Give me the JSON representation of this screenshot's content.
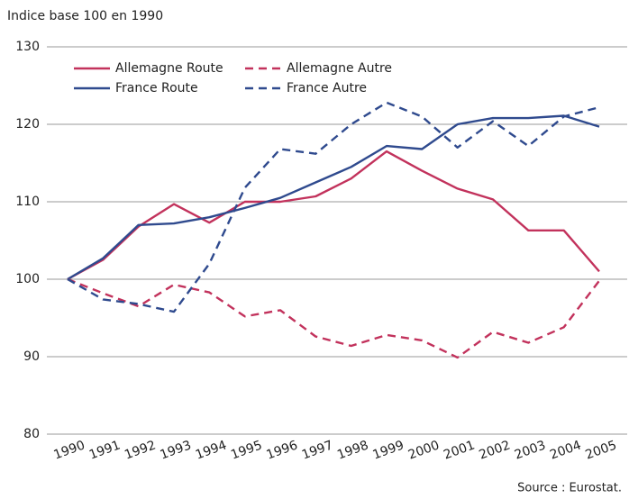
{
  "chart_data": {
    "type": "line",
    "title": "Indice base 100 en 1990",
    "source": "Source : Eurostat.",
    "categories": [
      "1990",
      "1991",
      "1992",
      "1993",
      "1994",
      "1995",
      "1996",
      "1997",
      "1998",
      "1999",
      "2000",
      "2001",
      "2002",
      "2003",
      "2004",
      "2005"
    ],
    "series": [
      {
        "name": "Allemagne Route",
        "color": "#c2325c",
        "dashed": false,
        "values": [
          100,
          102.5,
          106.8,
          109.7,
          107.3,
          110,
          110,
          110.7,
          113,
          116.5,
          114,
          111.7,
          110.3,
          106.3,
          106.3,
          101
        ]
      },
      {
        "name": "France Route",
        "color": "#2f4a8e",
        "dashed": false,
        "values": [
          100,
          102.7,
          107,
          107.2,
          108,
          109.2,
          110.5,
          112.5,
          114.5,
          117.2,
          116.8,
          120,
          120.8,
          120.8,
          121.1,
          119.7
        ]
      },
      {
        "name": "Allemagne Autre",
        "color": "#c2325c",
        "dashed": true,
        "values": [
          100,
          98.2,
          96.5,
          99.3,
          98.3,
          95.2,
          96,
          92.6,
          91.4,
          92.8,
          92.1,
          89.9,
          93.2,
          91.8,
          93.8,
          99.8
        ]
      },
      {
        "name": "France Autre",
        "color": "#2f4a8e",
        "dashed": true,
        "values": [
          100,
          97.4,
          96.8,
          95.8,
          102,
          111.8,
          116.8,
          116.2,
          120,
          122.8,
          121,
          117,
          120.4,
          117.2,
          121,
          122.2
        ]
      }
    ],
    "ylim": [
      80,
      130
    ],
    "yticks": [
      80,
      90,
      100,
      110,
      120,
      130
    ],
    "grid": true,
    "legend": "top-left"
  }
}
